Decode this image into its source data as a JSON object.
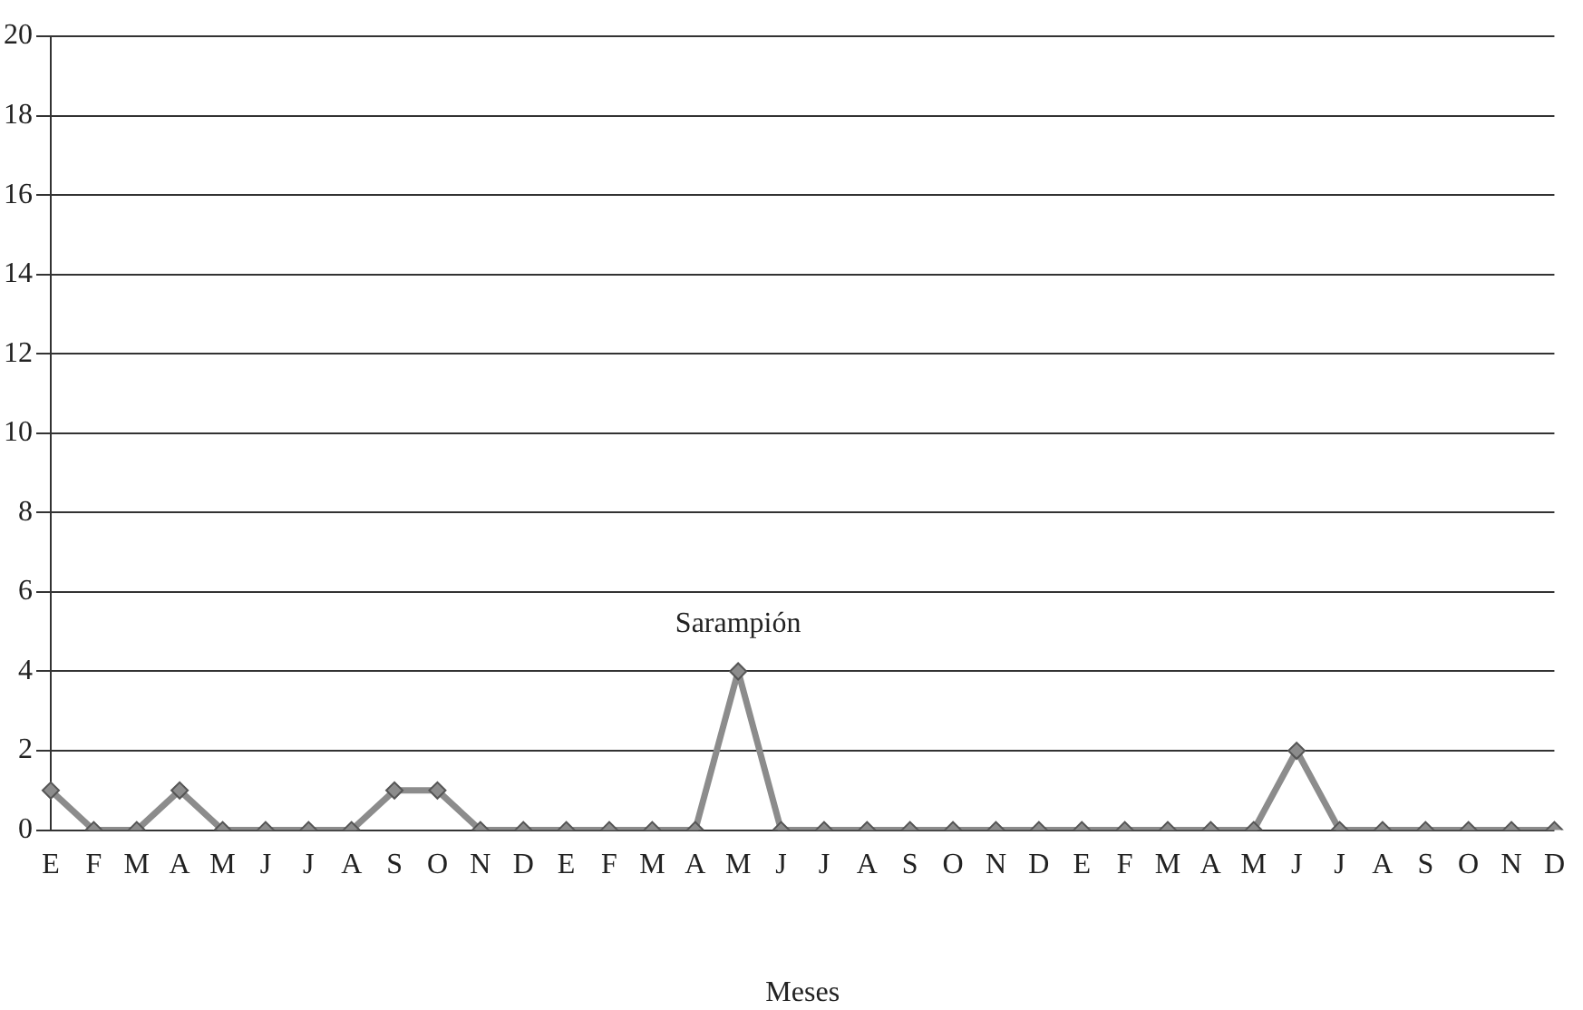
{
  "chart_data": {
    "type": "line",
    "xlabel": "Meses",
    "categories": [
      "E",
      "F",
      "M",
      "A",
      "M",
      "J",
      "J",
      "A",
      "S",
      "O",
      "N",
      "D",
      "E",
      "F",
      "M",
      "A",
      "M",
      "J",
      "J",
      "A",
      "S",
      "O",
      "N",
      "D",
      "E",
      "F",
      "M",
      "A",
      "M",
      "J",
      "J",
      "A",
      "S",
      "O",
      "N",
      "D"
    ],
    "series": [
      {
        "name": "Sarampión",
        "color": "#8c8c8c",
        "values": [
          1,
          0,
          0,
          1,
          0,
          0,
          0,
          0,
          1,
          1,
          0,
          0,
          0,
          0,
          0,
          0,
          4,
          0,
          0,
          0,
          0,
          0,
          0,
          0,
          0,
          0,
          0,
          0,
          0,
          2,
          0,
          0,
          0,
          0,
          0,
          0
        ]
      }
    ],
    "ylim": [
      0,
      20
    ],
    "yticks": [
      0,
      2,
      4,
      6,
      8,
      10,
      12,
      14,
      16,
      18,
      20
    ],
    "grid": "y",
    "legend": false,
    "marker": "diamond",
    "line_style": "solid"
  }
}
